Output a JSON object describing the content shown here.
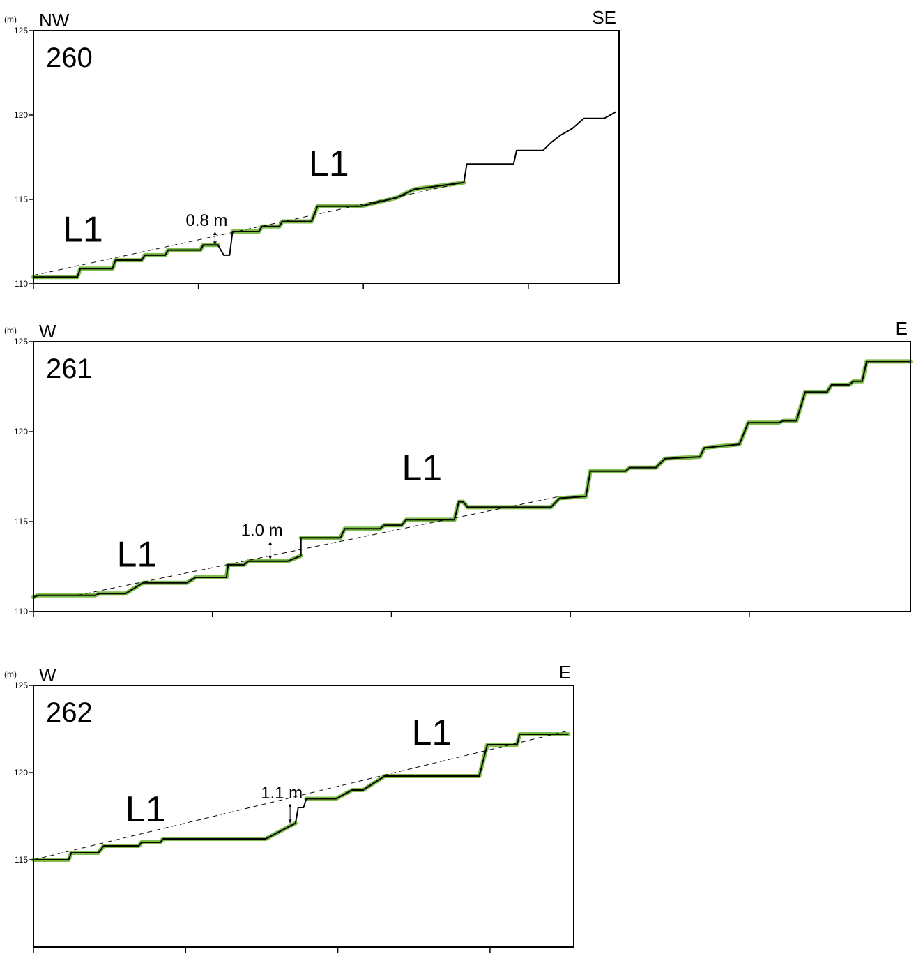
{
  "colors": {
    "profile": "#000000",
    "terrace": "#7cbc48",
    "fit_line": "#000000",
    "frame": "#000000"
  },
  "chart_data": [
    {
      "type": "line",
      "panel_id": "260",
      "unit_label": "(m)",
      "direction_left": "NW",
      "direction_right": "SE",
      "ylim": [
        110,
        125
      ],
      "yticks": [
        "110",
        "115",
        "120",
        "125"
      ],
      "x_tick_count": 4,
      "terrace_label": "L1",
      "terrace_labels": [
        {
          "text": "L1",
          "x": 5,
          "y": 112.5
        },
        {
          "text": "L1",
          "x": 47,
          "y": 116.4
        }
      ],
      "offset": {
        "label": "0.8 m",
        "x": 31,
        "y_top": 113.1,
        "y_bottom": 112.3
      },
      "xlim": [
        0,
        100
      ],
      "profile": [
        [
          0,
          110.4
        ],
        [
          7.5,
          110.4
        ],
        [
          8,
          110.9
        ],
        [
          13.5,
          110.9
        ],
        [
          14,
          111.4
        ],
        [
          18.5,
          111.4
        ],
        [
          19,
          111.7
        ],
        [
          22.5,
          111.7
        ],
        [
          23,
          112.0
        ],
        [
          28.5,
          112.0
        ],
        [
          29,
          112.3
        ],
        [
          31.5,
          112.3
        ],
        [
          32.5,
          111.7
        ],
        [
          33.5,
          111.7
        ],
        [
          34,
          113.1
        ],
        [
          38.5,
          113.1
        ],
        [
          39,
          113.4
        ],
        [
          42,
          113.4
        ],
        [
          42.5,
          113.7
        ],
        [
          47.5,
          113.7
        ],
        [
          48.5,
          114.6
        ],
        [
          56,
          114.6
        ],
        [
          62,
          115.1
        ],
        [
          65,
          115.6
        ],
        [
          73.5,
          116.0
        ],
        [
          74,
          117.1
        ],
        [
          82,
          117.1
        ],
        [
          82.5,
          117.9
        ],
        [
          87,
          117.9
        ],
        [
          88.5,
          118.4
        ],
        [
          90,
          118.8
        ],
        [
          92,
          119.2
        ],
        [
          94,
          119.8
        ],
        [
          97.5,
          119.8
        ],
        [
          99.5,
          120.2
        ]
      ],
      "terrace_segments": [
        [
          [
            0,
            110.4
          ],
          [
            7.5,
            110.4
          ],
          [
            8,
            110.9
          ],
          [
            13.5,
            110.9
          ],
          [
            14,
            111.4
          ],
          [
            18.5,
            111.4
          ],
          [
            19,
            111.7
          ],
          [
            22.5,
            111.7
          ],
          [
            23,
            112.0
          ],
          [
            28.5,
            112.0
          ],
          [
            29,
            112.3
          ],
          [
            31.5,
            112.3
          ]
        ],
        [
          [
            34,
            113.1
          ],
          [
            38.5,
            113.1
          ],
          [
            39,
            113.4
          ],
          [
            42,
            113.4
          ],
          [
            42.5,
            113.7
          ],
          [
            47.5,
            113.7
          ],
          [
            48.5,
            114.6
          ],
          [
            56,
            114.6
          ],
          [
            62,
            115.1
          ],
          [
            65,
            115.6
          ],
          [
            73.5,
            116.0
          ]
        ]
      ],
      "fit_line": [
        [
          0,
          110.5
        ],
        [
          73.5,
          116.0
        ]
      ]
    },
    {
      "type": "line",
      "panel_id": "261",
      "unit_label": "(m)",
      "direction_left": "W",
      "direction_right": "E",
      "ylim": [
        110,
        125
      ],
      "yticks": [
        "110",
        "115",
        "120",
        "125"
      ],
      "x_tick_count": 5,
      "terrace_label": "L1",
      "terrace_labels": [
        {
          "text": "L1",
          "x": 9.5,
          "y": 112.5
        },
        {
          "text": "L1",
          "x": 42,
          "y": 117.3
        }
      ],
      "offset": {
        "label": "1.0 m",
        "x": 27,
        "y_top": 113.9,
        "y_bottom": 112.9
      },
      "xlim": [
        0,
        100
      ],
      "profile": [
        [
          0,
          110.8
        ],
        [
          0.5,
          110.9
        ],
        [
          7,
          110.9
        ],
        [
          7.5,
          111.0
        ],
        [
          10.5,
          111.0
        ],
        [
          12.5,
          111.6
        ],
        [
          17.5,
          111.6
        ],
        [
          18.5,
          111.9
        ],
        [
          22,
          111.9
        ],
        [
          22.2,
          112.6
        ],
        [
          24,
          112.6
        ],
        [
          24.5,
          112.8
        ],
        [
          27,
          112.8
        ],
        [
          29,
          112.8
        ],
        [
          30.5,
          113.1
        ],
        [
          30.5,
          114.1
        ],
        [
          35,
          114.1
        ],
        [
          35.5,
          114.6
        ],
        [
          39.5,
          114.6
        ],
        [
          40,
          114.8
        ],
        [
          42,
          114.8
        ],
        [
          42.5,
          115.1
        ],
        [
          48,
          115.1
        ],
        [
          48.5,
          116.1
        ],
        [
          49,
          116.1
        ],
        [
          49.5,
          115.8
        ],
        [
          59,
          115.8
        ],
        [
          60,
          116.3
        ],
        [
          63,
          116.4
        ],
        [
          63.5,
          117.8
        ],
        [
          67.5,
          117.8
        ],
        [
          68,
          118.0
        ],
        [
          71,
          118.0
        ],
        [
          72,
          118.5
        ],
        [
          76,
          118.6
        ],
        [
          76.5,
          119.1
        ],
        [
          80.5,
          119.3
        ],
        [
          81.5,
          120.5
        ],
        [
          85,
          120.5
        ],
        [
          85.5,
          120.6
        ],
        [
          87,
          120.6
        ],
        [
          88,
          122.2
        ],
        [
          90.5,
          122.2
        ],
        [
          91,
          122.6
        ],
        [
          93,
          122.6
        ],
        [
          93.5,
          122.8
        ],
        [
          94.5,
          122.8
        ],
        [
          95,
          123.9
        ],
        [
          100,
          123.9
        ]
      ],
      "terrace_segments": [
        [
          [
            0,
            110.8
          ],
          [
            0.5,
            110.9
          ],
          [
            7,
            110.9
          ],
          [
            7.5,
            111.0
          ],
          [
            10.5,
            111.0
          ],
          [
            12.5,
            111.6
          ],
          [
            17.5,
            111.6
          ],
          [
            18.5,
            111.9
          ],
          [
            22,
            111.9
          ],
          [
            22.2,
            112.6
          ],
          [
            24,
            112.6
          ],
          [
            24.5,
            112.8
          ],
          [
            27,
            112.8
          ],
          [
            29,
            112.8
          ],
          [
            30.5,
            113.1
          ]
        ],
        [
          [
            30.5,
            114.1
          ],
          [
            35,
            114.1
          ],
          [
            35.5,
            114.6
          ],
          [
            39.5,
            114.6
          ],
          [
            40,
            114.8
          ],
          [
            42,
            114.8
          ],
          [
            42.5,
            115.1
          ],
          [
            48,
            115.1
          ],
          [
            48.5,
            116.1
          ],
          [
            49,
            116.1
          ],
          [
            49.5,
            115.8
          ],
          [
            59,
            115.8
          ],
          [
            60,
            116.3
          ],
          [
            63,
            116.4
          ],
          [
            63.5,
            117.8
          ],
          [
            67.5,
            117.8
          ],
          [
            68,
            118.0
          ],
          [
            71,
            118.0
          ],
          [
            72,
            118.5
          ],
          [
            76,
            118.6
          ],
          [
            76.5,
            119.1
          ],
          [
            80.5,
            119.3
          ],
          [
            81.5,
            120.5
          ],
          [
            85,
            120.5
          ],
          [
            85.5,
            120.6
          ],
          [
            87,
            120.6
          ],
          [
            88,
            122.2
          ],
          [
            90.5,
            122.2
          ],
          [
            91,
            122.6
          ],
          [
            93,
            122.6
          ],
          [
            93.5,
            122.8
          ],
          [
            94.5,
            122.8
          ],
          [
            95,
            123.9
          ],
          [
            100,
            123.9
          ]
        ]
      ],
      "fit_line": [
        [
          5,
          110.9
        ],
        [
          60,
          116.4
        ]
      ]
    },
    {
      "type": "line",
      "panel_id": "262",
      "unit_label": "(m)",
      "direction_left": "W",
      "direction_right": "E",
      "ylim": [
        110,
        125
      ],
      "yticks": [
        "115",
        "120",
        "125"
      ],
      "x_tick_count": 4,
      "terrace_label": "L1",
      "terrace_labels": [
        {
          "text": "L1",
          "x": 17,
          "y": 117.2
        },
        {
          "text": "L1",
          "x": 70,
          "y": 121.6
        }
      ],
      "offset": {
        "label": "1.1 m",
        "x": 47.5,
        "y_top": 118.2,
        "y_bottom": 117.1
      },
      "xlim": [
        0,
        100
      ],
      "profile": [
        [
          0,
          115.0
        ],
        [
          6.5,
          115.0
        ],
        [
          7,
          115.4
        ],
        [
          12,
          115.4
        ],
        [
          13,
          115.8
        ],
        [
          19.5,
          115.8
        ],
        [
          20,
          116.0
        ],
        [
          23.5,
          116.0
        ],
        [
          24,
          116.2
        ],
        [
          43,
          116.2
        ],
        [
          48.5,
          117.1
        ],
        [
          49,
          118.0
        ],
        [
          50,
          118.0
        ],
        [
          50.5,
          118.5
        ],
        [
          56,
          118.5
        ],
        [
          59,
          119.0
        ],
        [
          61,
          119.0
        ],
        [
          65,
          119.8
        ],
        [
          82.5,
          119.8
        ],
        [
          84,
          121.6
        ],
        [
          89.5,
          121.6
        ],
        [
          90,
          122.2
        ],
        [
          99,
          122.2
        ]
      ],
      "terrace_segments": [
        [
          [
            0,
            115.0
          ],
          [
            6.5,
            115.0
          ],
          [
            7,
            115.4
          ],
          [
            12,
            115.4
          ],
          [
            13,
            115.8
          ],
          [
            19.5,
            115.8
          ],
          [
            20,
            116.0
          ],
          [
            23.5,
            116.0
          ],
          [
            24,
            116.2
          ],
          [
            43,
            116.2
          ],
          [
            48.5,
            117.1
          ]
        ],
        [
          [
            50.5,
            118.5
          ],
          [
            56,
            118.5
          ],
          [
            59,
            119.0
          ],
          [
            61,
            119.0
          ],
          [
            65,
            119.8
          ],
          [
            82.5,
            119.8
          ],
          [
            84,
            121.6
          ],
          [
            89.5,
            121.6
          ],
          [
            90,
            122.2
          ],
          [
            99,
            122.2
          ]
        ]
      ],
      "fit_line": [
        [
          0,
          115.0
        ],
        [
          99,
          122.4
        ]
      ]
    }
  ]
}
